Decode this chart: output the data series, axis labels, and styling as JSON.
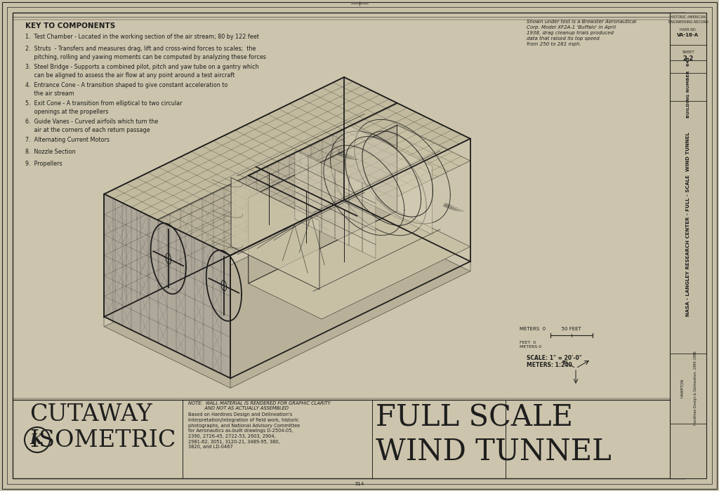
{
  "bg_color": "#c8c0a8",
  "paper_color": "#d0c8b0",
  "inner_color": "#ccc4ac",
  "line_color": "#1e1e1e",
  "border_color": "#222222",
  "hatch_color": "#555555",
  "title_main_line1": "FULL SCALE",
  "title_main_line2": "WIND TUNNEL",
  "title_sub_line1": "CUTAWAY",
  "title_sub_line2": "ISOMETRIC",
  "key_title": "KEY TO COMPONENTS",
  "key_items": [
    "1.  Test Chamber - Located in the working section of the air stream; 80 by 122 feet",
    "2.  Struts  - Transfers and measures drag, lift and cross-wind forces to scales;  the\n     pitching, rolling and yawing moments can be computed by analyzing these forces",
    "3.  Steel Bridge - Supports a combined pilot, pitch and yaw tube on a gantry which\n     can be aligned to assess the air flow at any point around a test aircraft",
    "4.  Entrance Cone - A transition shaped to give constant acceleration to\n     the air stream",
    "5.  Exit Cone - A transition from elliptical to two circular\n     openings at the propellers",
    "6.  Guide Vanes - Curved airfoils which turn the\n     air at the corners of each return passage",
    "7.  Alternating Current Motors",
    "8.  Nozzle Section",
    "9.  Propellers"
  ],
  "note_text": "NOTE:  WALL MATERIAL IS RENDERED FOR GRAPHIC CLARITY\n           AND NOT AS ACTUALLY ASSEMBLED",
  "based_on_text": "Based on Hardines Design and Delineation's\nInterpretation/Integration of field work, historic\nphotographs, and National Advisory Committee\nfor Aeronautics as-built drawings D-2504-05,\n2390, 2726-45, 2722-53, 2603, 2904,\n2981-62, 3051, 3120-21, 3489-95, 380,\n3820, and LD-0467",
  "shown_text": "Shown under test is a Brewster Aeronautical\nCorp. Model XF2A-1 'Buffalo' in April\n1938, drag cleanup trials produced\ndata that raised its top speed\nfrom 250 to 281 mph.",
  "scale_text1": "SCALE: 1\" = 20'-0\"",
  "scale_text2": "METERS: 1:240",
  "header_line1": "NASA - LANGLEY RESEARCH CENTER - FULL - SCALE  WIND TUNNEL",
  "header_line2": "BUILDING NUMBER   643",
  "sheet_label": "SHEET",
  "sheet_num": "2-2",
  "haer_label": "HAER NO.",
  "haer_num": "VA-18-A",
  "delineator": "Hardlines Design & Delineation, 1995-1996",
  "location_text": "Hampton",
  "page_num": "514"
}
